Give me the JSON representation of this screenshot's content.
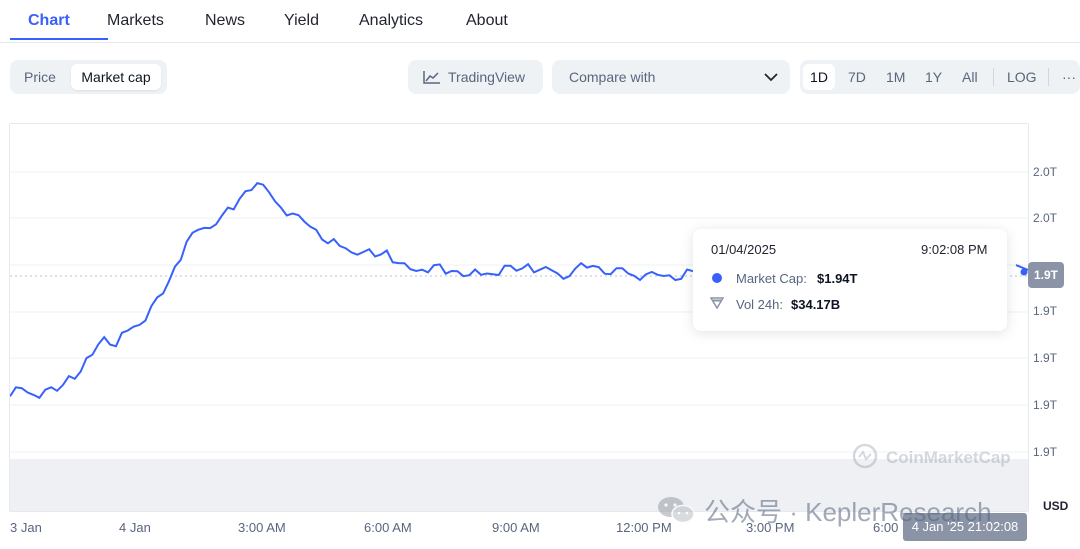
{
  "tabs": [
    {
      "label": "Chart",
      "active": true
    },
    {
      "label": "Markets"
    },
    {
      "label": "News"
    },
    {
      "label": "Yield"
    },
    {
      "label": "Analytics"
    },
    {
      "label": "About"
    }
  ],
  "toolbar": {
    "price_label": "Price",
    "market_cap_label": "Market cap",
    "tradingview_label": "TradingView",
    "compare_label": "Compare with",
    "ranges": [
      "1D",
      "7D",
      "1M",
      "1Y",
      "All"
    ],
    "active_range": "1D",
    "log_label": "LOG",
    "more_label": "···"
  },
  "tooltip": {
    "date": "01/04/2025",
    "time": "9:02:08 PM",
    "market_cap_label": "Market Cap:",
    "market_cap_value": "$1.94T",
    "volume_label": "Vol 24h:",
    "volume_value": "$34.17B"
  },
  "watermarks": {
    "brand": "CoinMarketCap",
    "wechat": "公众号 · KeplerResearch"
  },
  "current_value_tag": "1.9T",
  "crosshair_time": "4 Jan '25 21:02:08",
  "colors": {
    "line": "#3861fb",
    "accent": "#3861fb",
    "tag": "#8a94a6"
  },
  "chart_data": {
    "type": "line",
    "series": [
      {
        "name": "Market Cap",
        "color": "#3861fb",
        "values": [
          1.917,
          1.921,
          1.916,
          1.92,
          1.918,
          1.925,
          1.926,
          1.935,
          1.94,
          1.938,
          1.943,
          1.946,
          1.951,
          1.958,
          1.967,
          1.978,
          1.982,
          1.985,
          1.988,
          1.992,
          1.998,
          2.002,
          1.996,
          1.992,
          1.988,
          1.986,
          1.982,
          1.979,
          1.976,
          1.975,
          1.974,
          1.973,
          1.973,
          1.97,
          1.966,
          1.967,
          1.968,
          1.967,
          1.966,
          1.966,
          1.965,
          1.966,
          1.967,
          1.967,
          1.968,
          1.967,
          1.966,
          1.965,
          1.967,
          1.969,
          1.968,
          1.966,
          1.966,
          1.965,
          1.964,
          1.965,
          1.964,
          1.965,
          1.966
        ]
      }
    ],
    "y_axis_labels": [
      "2.0T",
      "2.0T",
      "1.9T",
      "1.9T",
      "1.9T",
      "1.9T",
      "1.9T"
    ],
    "x_axis_labels": [
      "3 Jan",
      "4 Jan",
      "3:00 AM",
      "6:00 AM",
      "9:00 AM",
      "12:00 PM",
      "3:00 PM",
      "6:00 PM"
    ],
    "y_unit": "USD",
    "grid": true
  }
}
